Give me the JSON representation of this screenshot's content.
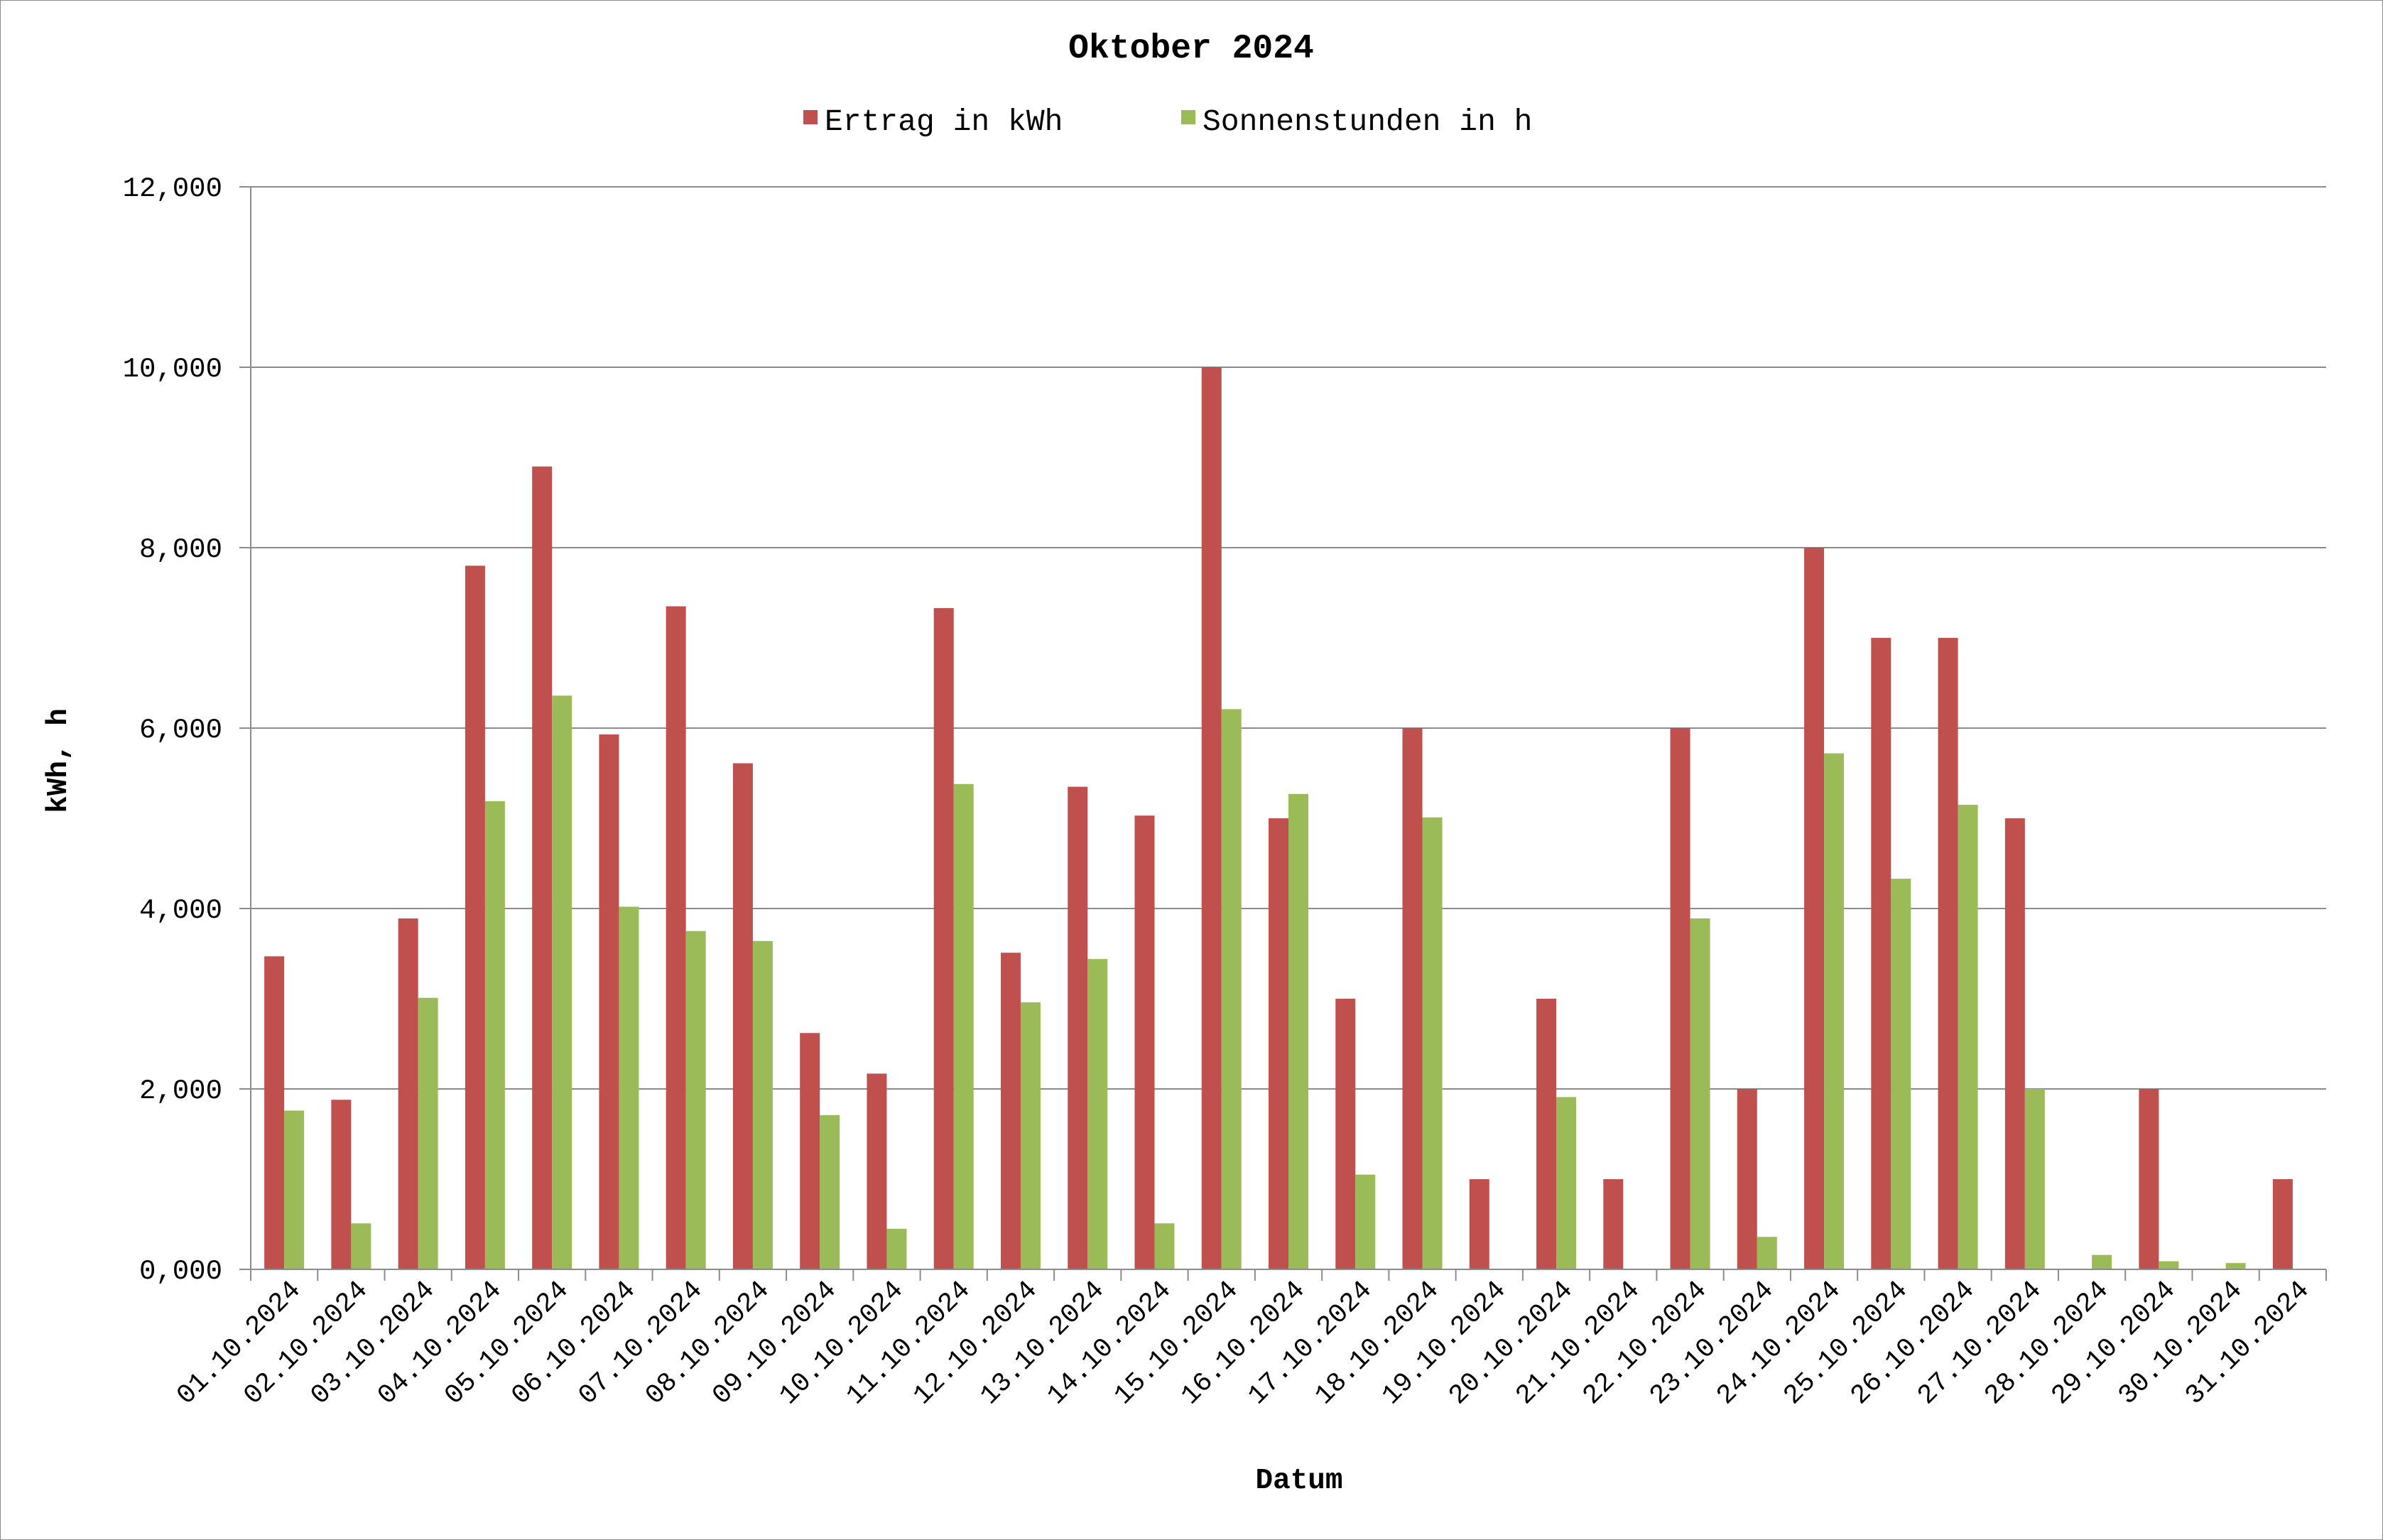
{
  "chart_data": {
    "type": "bar",
    "title": "Oktober 2024",
    "xlabel": "Datum",
    "ylabel": "kWh, h",
    "ylim": [
      0,
      12
    ],
    "yticks": [
      "0,000",
      "2,000",
      "4,000",
      "6,000",
      "8,000",
      "10,000",
      "12,000"
    ],
    "grid": true,
    "legend_position": "top-center",
    "categories": [
      "01.10.2024",
      "02.10.2024",
      "03.10.2024",
      "04.10.2024",
      "05.10.2024",
      "06.10.2024",
      "07.10.2024",
      "08.10.2024",
      "09.10.2024",
      "10.10.2024",
      "11.10.2024",
      "12.10.2024",
      "13.10.2024",
      "14.10.2024",
      "15.10.2024",
      "16.10.2024",
      "17.10.2024",
      "18.10.2024",
      "19.10.2024",
      "20.10.2024",
      "21.10.2024",
      "22.10.2024",
      "23.10.2024",
      "24.10.2024",
      "25.10.2024",
      "26.10.2024",
      "27.10.2024",
      "28.10.2024",
      "29.10.2024",
      "30.10.2024",
      "31.10.2024"
    ],
    "series": [
      {
        "name": "Ertrag in kWh",
        "color": "#c0504d",
        "values": [
          3.47,
          1.88,
          3.89,
          7.8,
          8.9,
          5.93,
          7.35,
          5.61,
          2.62,
          2.17,
          7.33,
          3.51,
          5.35,
          5.03,
          10.0,
          5.0,
          3.0,
          6.0,
          1.0,
          3.0,
          1.0,
          6.0,
          2.0,
          8.0,
          7.0,
          7.0,
          5.0,
          0.0,
          2.0,
          0.0,
          1.0
        ]
      },
      {
        "name": "Sonnenstunden in h",
        "color": "#9bbb59",
        "values": [
          1.76,
          0.51,
          3.01,
          5.19,
          6.36,
          4.02,
          3.75,
          3.64,
          1.71,
          0.45,
          5.38,
          2.96,
          3.44,
          0.51,
          6.21,
          5.27,
          1.05,
          5.01,
          0.0,
          1.91,
          0.0,
          3.89,
          0.36,
          5.72,
          4.33,
          5.15,
          2.0,
          0.16,
          0.09,
          0.07,
          0.0
        ]
      }
    ]
  }
}
